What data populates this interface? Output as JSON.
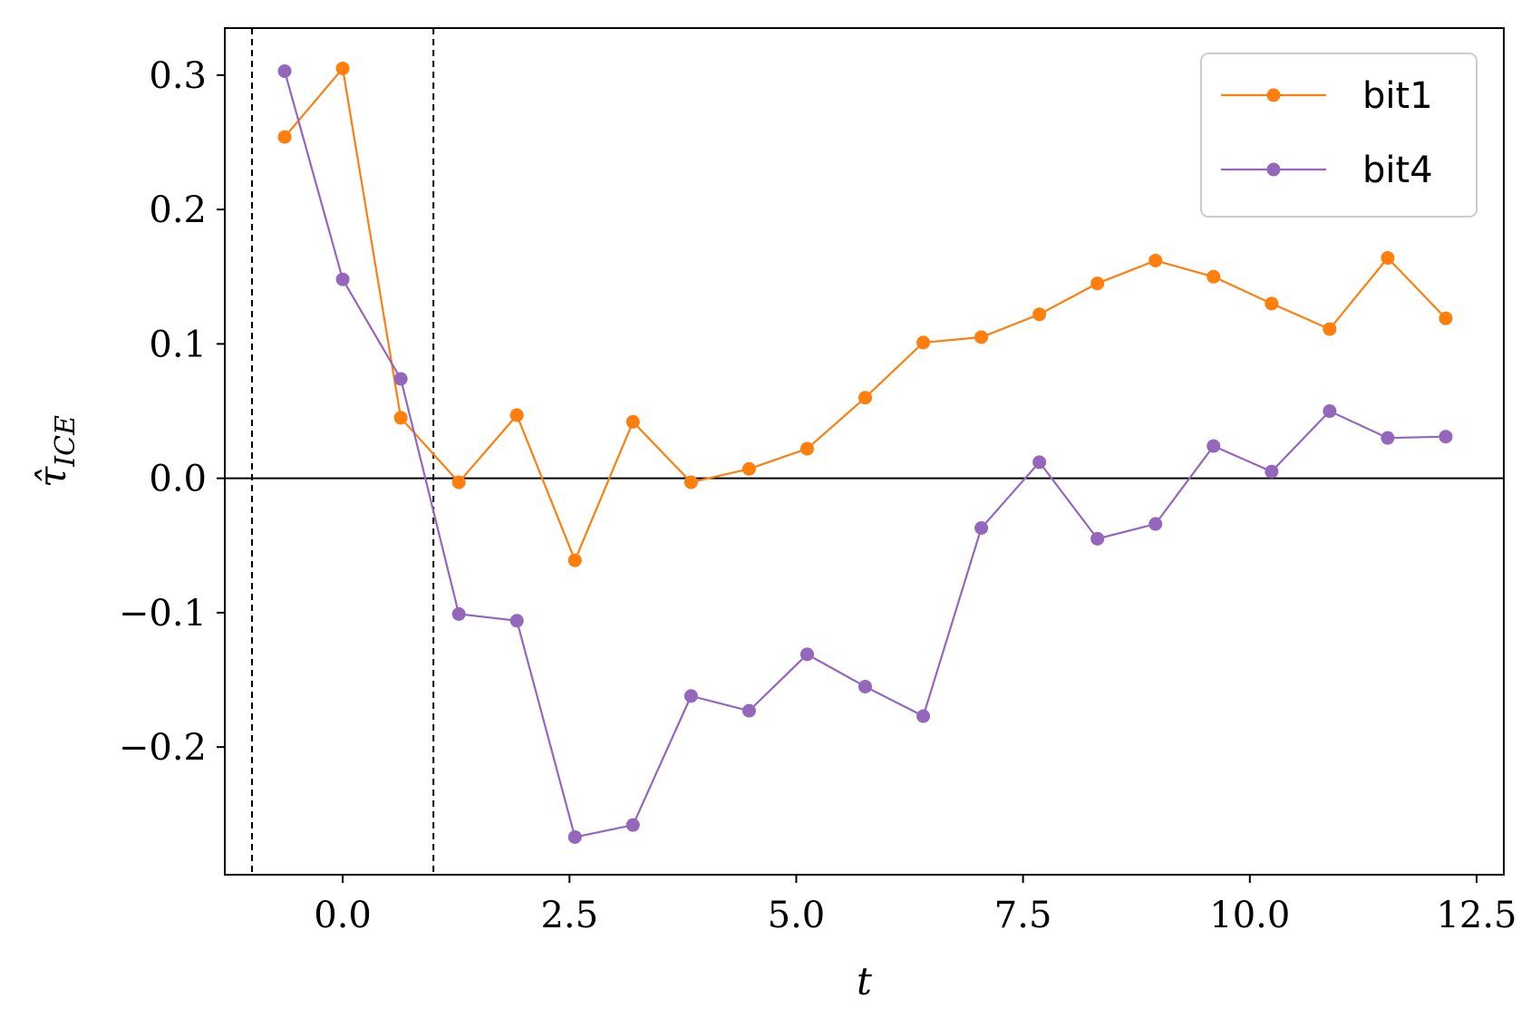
{
  "chart_data": {
    "type": "line",
    "title": "",
    "xlabel": "t",
    "ylabel": "τ̂ICE",
    "xlim": [
      -1.3,
      12.8
    ],
    "ylim": [
      -0.295,
      0.335
    ],
    "xticks": [
      0.0,
      2.5,
      5.0,
      7.5,
      10.0,
      12.5
    ],
    "xtick_labels": [
      "0.0",
      "2.5",
      "5.0",
      "7.5",
      "10.0",
      "12.5"
    ],
    "yticks": [
      -0.2,
      -0.1,
      0.0,
      0.1,
      0.2,
      0.3
    ],
    "ytick_labels": [
      "−0.2",
      "−0.1",
      "0.0",
      "0.1",
      "0.2",
      "0.3"
    ],
    "reference_lines": {
      "horizontal": [
        0.0
      ],
      "vertical_dashed": [
        -1.0,
        1.0
      ]
    },
    "grid": false,
    "legend": "top-right",
    "x": [
      -0.64,
      0.0,
      0.64,
      1.28,
      1.92,
      2.56,
      3.2,
      3.84,
      4.48,
      5.12,
      5.76,
      6.4,
      7.04,
      7.68,
      8.32,
      8.96,
      9.6,
      10.24,
      10.88,
      11.52,
      12.16
    ],
    "series": [
      {
        "name": "bit1",
        "color": "#ff7f0e",
        "values": [
          0.254,
          0.305,
          0.045,
          -0.003,
          0.047,
          -0.061,
          0.042,
          -0.003,
          0.007,
          0.022,
          0.06,
          0.101,
          0.105,
          0.122,
          0.145,
          0.162,
          0.15,
          0.13,
          0.111,
          0.164,
          0.119
        ]
      },
      {
        "name": "bit4",
        "color": "#9467bd",
        "values": [
          0.303,
          0.148,
          0.074,
          -0.101,
          -0.106,
          -0.267,
          -0.258,
          -0.162,
          -0.173,
          -0.131,
          -0.155,
          -0.177,
          -0.037,
          0.012,
          -0.045,
          -0.034,
          0.024,
          0.005,
          0.05,
          0.03,
          0.031
        ]
      }
    ]
  }
}
